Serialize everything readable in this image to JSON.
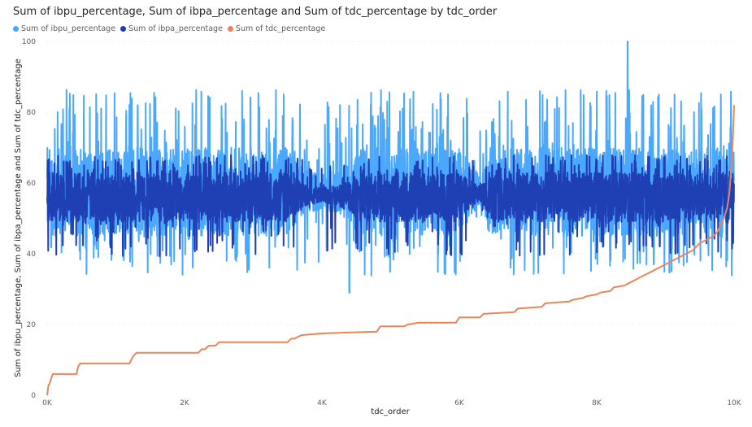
{
  "chart_data": {
    "type": "line",
    "title": "Sum of ibpu_percentage, Sum of ibpa_percentage and Sum of tdc_percentage by tdc_order",
    "xlabel": "tdc_order",
    "ylabel": "Sum of ibpu_percentage, Sum of ibpa_percentage and Sum of tdc_percentage",
    "xlim": [
      0,
      10000
    ],
    "ylim": [
      0,
      100
    ],
    "x_ticks": [
      {
        "value": 0,
        "label": "0K"
      },
      {
        "value": 2000,
        "label": "2K"
      },
      {
        "value": 4000,
        "label": "4K"
      },
      {
        "value": 6000,
        "label": "6K"
      },
      {
        "value": 8000,
        "label": "8K"
      },
      {
        "value": 10000,
        "label": "10K"
      }
    ],
    "y_ticks": [
      {
        "value": 0,
        "label": "0"
      },
      {
        "value": 20,
        "label": "20"
      },
      {
        "value": 40,
        "label": "40"
      },
      {
        "value": 60,
        "label": "60"
      },
      {
        "value": 80,
        "label": "80"
      },
      {
        "value": 100,
        "label": "100"
      }
    ],
    "grid": "horizontal-dotted",
    "legend_position": "top-left",
    "series": [
      {
        "name": "Sum of ibpu_percentage",
        "color": "#4aa8ff",
        "style": "noisy-band",
        "x": [
          0,
          500,
          1000,
          1500,
          2000,
          2500,
          3000,
          3500,
          3800,
          4200,
          4600,
          5000,
          5500,
          6000,
          6300,
          6500,
          7000,
          7500,
          8000,
          8500,
          9000,
          9500,
          10000
        ],
        "band_low": [
          45,
          45,
          45,
          45,
          45,
          45,
          45,
          45,
          52,
          52,
          45,
          45,
          45,
          45,
          54,
          45,
          45,
          45,
          45,
          45,
          45,
          45,
          45
        ],
        "band_high": [
          70,
          70,
          70,
          70,
          70,
          70,
          70,
          70,
          63,
          63,
          70,
          70,
          70,
          70,
          62,
          70,
          70,
          70,
          70,
          70,
          70,
          70,
          70
        ],
        "min": 29,
        "max": 100,
        "min_at": 4400,
        "max_at": 8450
      },
      {
        "name": "Sum of ibpa_percentage",
        "color": "#1f3fb5",
        "style": "noisy-band",
        "x": [
          0,
          500,
          1000,
          1500,
          2000,
          2500,
          3000,
          3500,
          3800,
          4200,
          4600,
          5000,
          5500,
          6000,
          6300,
          6500,
          7000,
          7500,
          8000,
          8500,
          9000,
          9500,
          10000
        ],
        "band_low": [
          49,
          49,
          49,
          49,
          49,
          49,
          49,
          49,
          54,
          54,
          49,
          49,
          49,
          49,
          55,
          49,
          49,
          49,
          49,
          49,
          49,
          49,
          49
        ],
        "band_high": [
          63,
          63,
          63,
          63,
          63,
          63,
          63,
          63,
          59,
          59,
          63,
          63,
          63,
          63,
          59,
          63,
          63,
          63,
          63,
          63,
          63,
          63,
          63
        ],
        "min": 35,
        "max": 72
      },
      {
        "name": "Sum of tdc_percentage",
        "color": "#e8865a",
        "style": "step",
        "x": [
          0,
          20,
          30,
          80,
          100,
          430,
          450,
          480,
          1200,
          1250,
          1300,
          2200,
          2250,
          2300,
          2350,
          2450,
          2500,
          3500,
          3550,
          3600,
          3700,
          4000,
          4800,
          4850,
          5200,
          5250,
          5400,
          5950,
          6000,
          6300,
          6350,
          6800,
          6850,
          7200,
          7250,
          7600,
          7650,
          7800,
          7850,
          8000,
          8050,
          8200,
          8250,
          8400,
          8500,
          8600,
          8700,
          8800,
          8900,
          9000,
          9100,
          9200,
          9300,
          9400,
          9500,
          9600,
          9700,
          9750,
          9800,
          9850,
          9900,
          9930,
          9950,
          9970,
          9985,
          10000
        ],
        "y": [
          0,
          3,
          3,
          6,
          6,
          6,
          8,
          9,
          9,
          11,
          12,
          12,
          13,
          13,
          14,
          14,
          15,
          15,
          16,
          16,
          17,
          17.5,
          18,
          19.5,
          19.5,
          20,
          20.5,
          20.5,
          22,
          22,
          23,
          23.5,
          24.5,
          25,
          26,
          26.5,
          27,
          27.5,
          28,
          28.5,
          29,
          29.5,
          30.5,
          31,
          32,
          33,
          34,
          35,
          36,
          37,
          38,
          39,
          40,
          41,
          43,
          44,
          45,
          46,
          48,
          50,
          53,
          57,
          62,
          68,
          74,
          82
        ]
      }
    ]
  }
}
